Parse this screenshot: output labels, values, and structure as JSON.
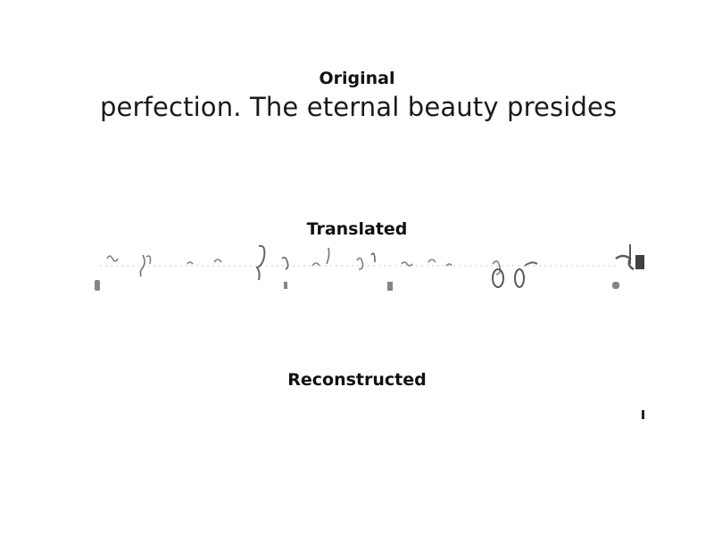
{
  "panels": {
    "original": {
      "title": "Original",
      "text": "perfection. The eternal beauty presides"
    },
    "translated": {
      "title": "Translated"
    },
    "reconstructed": {
      "title": "Reconstructed"
    }
  },
  "colors": {
    "background": "#ffffff",
    "text": "#111111",
    "ink": "#1a1a1a"
  }
}
